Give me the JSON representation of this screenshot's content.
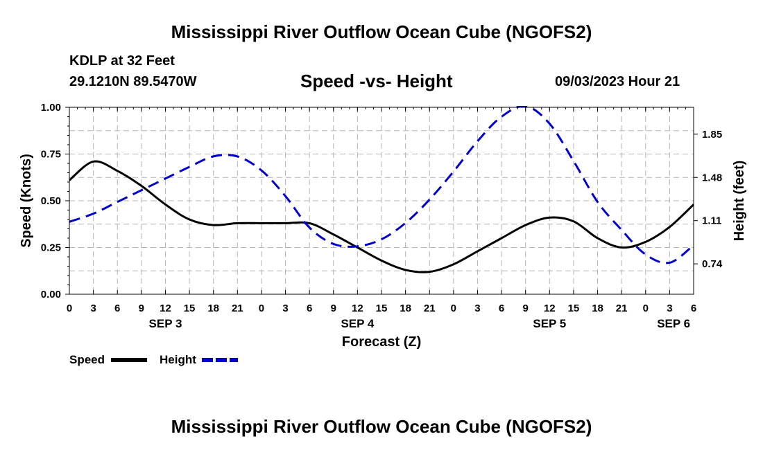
{
  "header": {
    "title": "Mississippi River Outflow Ocean Cube (NGOFS2)",
    "station": "KDLP at 32 Feet",
    "coordinates": "29.1210N  89.5470W",
    "subtitle": "Speed -vs- Height",
    "datetime": "09/03/2023 Hour 21"
  },
  "footer": {
    "title": "Mississippi River Outflow Ocean Cube (NGOFS2)"
  },
  "chart_data": {
    "type": "line",
    "xlabel": "Forecast (Z)",
    "x_range_hours": [
      0,
      78
    ],
    "x_tick_step_hours": 3,
    "x_tick_labels": [
      "0",
      "3",
      "6",
      "9",
      "12",
      "15",
      "18",
      "21",
      "0",
      "3",
      "6",
      "9",
      "12",
      "15",
      "18",
      "21",
      "0",
      "3",
      "6",
      "9",
      "12",
      "15",
      "18",
      "21",
      "0",
      "3",
      "6"
    ],
    "day_labels": [
      {
        "label": "SEP 3",
        "hour": 12
      },
      {
        "label": "SEP 4",
        "hour": 36
      },
      {
        "label": "SEP 5",
        "hour": 60
      },
      {
        "label": "SEP 6",
        "hour": 75.5
      }
    ],
    "y_left": {
      "label": "Speed (Knots)",
      "range": [
        0,
        1
      ],
      "ticks": [
        0,
        0.25,
        0.5,
        0.75,
        1.0
      ],
      "tick_labels": [
        "0.00",
        "0.25",
        "0.50",
        "0.75",
        "1.00"
      ]
    },
    "y_right": {
      "label": "Height (feet)",
      "range": [
        0.48,
        2.08
      ],
      "ticks": [
        0.74,
        1.11,
        1.48,
        1.85
      ],
      "tick_labels": [
        "0.74",
        "1.11",
        "1.48",
        "1.85"
      ]
    },
    "grid": true,
    "series": [
      {
        "name": "Speed",
        "axis": "left",
        "color": "#000000",
        "dash": "solid",
        "x": [
          0,
          3,
          6,
          9,
          12,
          15,
          18,
          21,
          24,
          27,
          30,
          33,
          36,
          39,
          42,
          45,
          48,
          51,
          54,
          57,
          60,
          63,
          66,
          69,
          72,
          75,
          78
        ],
        "y": [
          0.61,
          0.71,
          0.66,
          0.58,
          0.48,
          0.4,
          0.37,
          0.38,
          0.38,
          0.38,
          0.38,
          0.32,
          0.25,
          0.18,
          0.13,
          0.12,
          0.16,
          0.23,
          0.3,
          0.37,
          0.41,
          0.39,
          0.3,
          0.25,
          0.28,
          0.36,
          0.48
        ]
      },
      {
        "name": "Height",
        "axis": "right",
        "color": "#0000cc",
        "dash": "dashed",
        "x": [
          0,
          3,
          6,
          9,
          12,
          15,
          18,
          21,
          24,
          27,
          30,
          33,
          36,
          39,
          42,
          45,
          48,
          51,
          54,
          57,
          60,
          63,
          66,
          69,
          72,
          75,
          78
        ],
        "y": [
          1.1,
          1.17,
          1.27,
          1.37,
          1.47,
          1.57,
          1.66,
          1.66,
          1.54,
          1.32,
          1.05,
          0.91,
          0.89,
          0.95,
          1.09,
          1.29,
          1.53,
          1.79,
          2.0,
          2.09,
          1.94,
          1.62,
          1.27,
          1.03,
          0.82,
          0.75,
          0.9
        ]
      }
    ],
    "legend": {
      "position": "bottom-left",
      "entries": [
        "Speed",
        "Height"
      ]
    }
  }
}
